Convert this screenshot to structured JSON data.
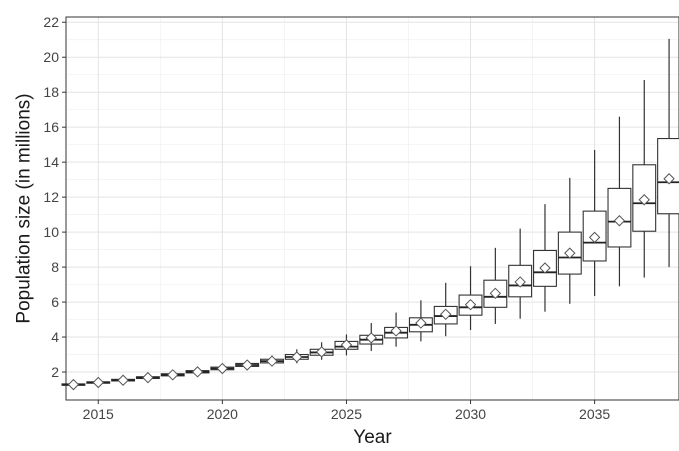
{
  "chart_data": {
    "type": "boxplot",
    "xlabel": "Year",
    "ylabel": "Population size (in millions)",
    "xlim": [
      2013.7,
      2038.4
    ],
    "ylim": [
      0.4,
      22.3
    ],
    "x_ticks": [
      2015,
      2020,
      2025,
      2030,
      2035
    ],
    "y_ticks": [
      2,
      4,
      6,
      8,
      10,
      12,
      14,
      16,
      18,
      20,
      22
    ],
    "grid": true,
    "series": [
      {
        "x": 2014,
        "whisker_low": 1.18,
        "q1": 1.24,
        "median": 1.28,
        "q3": 1.32,
        "whisker_high": 1.38,
        "mean": 1.28
      },
      {
        "x": 2015,
        "whisker_low": 1.3,
        "q1": 1.36,
        "median": 1.4,
        "q3": 1.44,
        "whisker_high": 1.5,
        "mean": 1.4
      },
      {
        "x": 2016,
        "whisker_low": 1.42,
        "q1": 1.49,
        "median": 1.53,
        "q3": 1.58,
        "whisker_high": 1.65,
        "mean": 1.53
      },
      {
        "x": 2017,
        "whisker_low": 1.55,
        "q1": 1.63,
        "median": 1.68,
        "q3": 1.73,
        "whisker_high": 1.81,
        "mean": 1.68
      },
      {
        "x": 2018,
        "whisker_low": 1.7,
        "q1": 1.78,
        "median": 1.84,
        "q3": 1.9,
        "whisker_high": 1.98,
        "mean": 1.84
      },
      {
        "x": 2019,
        "whisker_low": 1.86,
        "q1": 1.95,
        "median": 2.01,
        "q3": 2.08,
        "whisker_high": 2.18,
        "mean": 2.01
      },
      {
        "x": 2020,
        "whisker_low": 2.03,
        "q1": 2.13,
        "median": 2.2,
        "q3": 2.28,
        "whisker_high": 2.4,
        "mean": 2.2
      },
      {
        "x": 2021,
        "whisker_low": 2.2,
        "q1": 2.32,
        "median": 2.4,
        "q3": 2.49,
        "whisker_high": 2.65,
        "mean": 2.4
      },
      {
        "x": 2022,
        "whisker_low": 2.35,
        "q1": 2.52,
        "median": 2.62,
        "q3": 2.73,
        "whisker_high": 2.95,
        "mean": 2.62
      },
      {
        "x": 2023,
        "whisker_low": 2.5,
        "q1": 2.73,
        "median": 2.86,
        "q3": 3.0,
        "whisker_high": 3.3,
        "mean": 2.86
      },
      {
        "x": 2024,
        "whisker_low": 2.7,
        "q1": 2.96,
        "median": 3.12,
        "q3": 3.3,
        "whisker_high": 3.7,
        "mean": 3.15
      },
      {
        "x": 2025,
        "whisker_low": 2.95,
        "q1": 3.3,
        "median": 3.45,
        "q3": 3.75,
        "whisker_high": 4.15,
        "mean": 3.55
      },
      {
        "x": 2026,
        "whisker_low": 3.2,
        "q1": 3.6,
        "median": 3.85,
        "q3": 4.1,
        "whisker_high": 4.8,
        "mean": 3.95
      },
      {
        "x": 2027,
        "whisker_low": 3.45,
        "q1": 3.95,
        "median": 4.25,
        "q3": 4.55,
        "whisker_high": 5.4,
        "mean": 4.35
      },
      {
        "x": 2028,
        "whisker_low": 3.75,
        "q1": 4.3,
        "median": 4.7,
        "q3": 5.1,
        "whisker_high": 6.1,
        "mean": 4.8
      },
      {
        "x": 2029,
        "whisker_low": 4.05,
        "q1": 4.75,
        "median": 5.2,
        "q3": 5.75,
        "whisker_high": 7.1,
        "mean": 5.3
      },
      {
        "x": 2030,
        "whisker_low": 4.4,
        "q1": 5.25,
        "median": 5.7,
        "q3": 6.4,
        "whisker_high": 8.05,
        "mean": 5.85
      },
      {
        "x": 2031,
        "whisker_low": 4.75,
        "q1": 5.7,
        "median": 6.3,
        "q3": 7.25,
        "whisker_high": 9.1,
        "mean": 6.5
      },
      {
        "x": 2032,
        "whisker_low": 5.05,
        "q1": 6.3,
        "median": 6.95,
        "q3": 8.1,
        "whisker_high": 10.2,
        "mean": 7.15
      },
      {
        "x": 2033,
        "whisker_low": 5.45,
        "q1": 6.9,
        "median": 7.7,
        "q3": 8.95,
        "whisker_high": 11.6,
        "mean": 7.95
      },
      {
        "x": 2034,
        "whisker_low": 5.9,
        "q1": 7.6,
        "median": 8.55,
        "q3": 10.0,
        "whisker_high": 13.1,
        "mean": 8.8
      },
      {
        "x": 2035,
        "whisker_low": 6.35,
        "q1": 8.35,
        "median": 9.4,
        "q3": 11.2,
        "whisker_high": 14.7,
        "mean": 9.7
      },
      {
        "x": 2036,
        "whisker_low": 6.9,
        "q1": 9.15,
        "median": 10.6,
        "q3": 12.5,
        "whisker_high": 16.6,
        "mean": 10.65
      },
      {
        "x": 2037,
        "whisker_low": 7.4,
        "q1": 10.05,
        "median": 11.65,
        "q3": 13.85,
        "whisker_high": 18.7,
        "mean": 11.85
      },
      {
        "x": 2038,
        "whisker_low": 8.0,
        "q1": 11.05,
        "median": 12.85,
        "q3": 15.35,
        "whisker_high": 21.05,
        "mean": 13.05
      }
    ]
  }
}
